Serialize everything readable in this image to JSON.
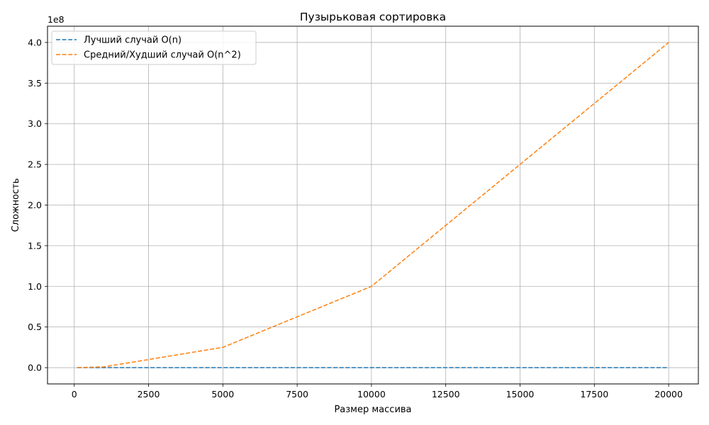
{
  "chart_data": {
    "type": "line",
    "title": "Пузырьковая сортировка",
    "xlabel": "Размер массива",
    "ylabel": "Сложность",
    "y_offset_label": "1e8",
    "y_scale": 100000000,
    "x": [
      100,
      1000,
      5000,
      10000,
      20000
    ],
    "xlim": [
      -900,
      21000
    ],
    "ylim": [
      -20000000,
      420000000
    ],
    "xticks": [
      0,
      2500,
      5000,
      7500,
      10000,
      12500,
      15000,
      17500,
      20000
    ],
    "yticks": [
      0,
      50000000,
      100000000,
      150000000,
      200000000,
      250000000,
      300000000,
      350000000,
      400000000
    ],
    "ytick_labels": [
      "0.0",
      "0.5",
      "1.0",
      "1.5",
      "2.0",
      "2.5",
      "3.0",
      "3.5",
      "4.0"
    ],
    "grid": true,
    "legend_position": "top-left",
    "series": [
      {
        "name": "Лучший случай O(n)",
        "color": "#1f77b4",
        "dashed": true,
        "values": [
          100,
          1000,
          5000,
          10000,
          20000
        ]
      },
      {
        "name": "Средний/Худший случай O(n^2)",
        "color": "#ff7f0e",
        "dashed": true,
        "values": [
          10000,
          1000000,
          25000000,
          100000000,
          400000000
        ]
      }
    ]
  }
}
